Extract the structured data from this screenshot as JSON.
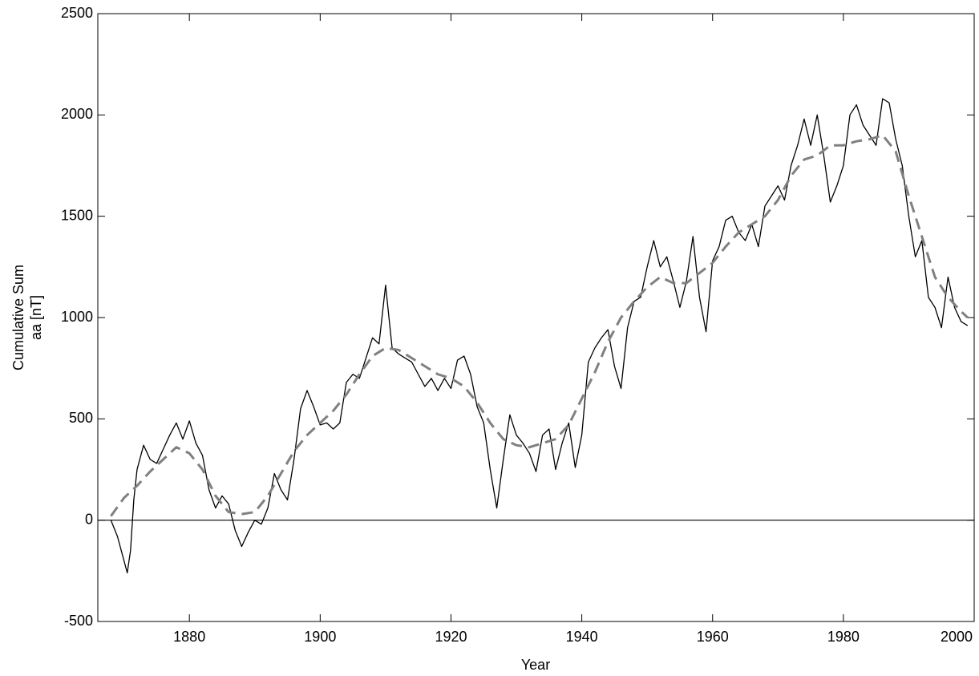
{
  "chart_data": {
    "type": "line",
    "xlabel": "Year",
    "ylabel": [
      "Cumulative Sum",
      "aa [nT]"
    ],
    "xlim": [
      1866,
      2000
    ],
    "xticks": [
      1880,
      1900,
      1920,
      1940,
      1960,
      1980,
      2000
    ],
    "ylim": [
      -500,
      2500
    ],
    "yticks": [
      -500,
      0,
      500,
      1000,
      1500,
      2000,
      2500
    ],
    "hline": 0,
    "series": [
      {
        "color": "#000000",
        "linestyle": "solid",
        "x": [
          1868,
          1869,
          1870,
          1870.5,
          1871,
          1871.5,
          1872,
          1873,
          1874,
          1875,
          1876,
          1877,
          1878,
          1879,
          1880,
          1881,
          1882,
          1883,
          1884,
          1885,
          1886,
          1887,
          1888,
          1889,
          1890,
          1891,
          1892,
          1893,
          1894,
          1895,
          1896,
          1897,
          1898,
          1899,
          1900,
          1901,
          1902,
          1903,
          1904,
          1905,
          1906,
          1907,
          1908,
          1909,
          1910,
          1911,
          1912,
          1913,
          1914,
          1915,
          1916,
          1917,
          1918,
          1919,
          1920,
          1921,
          1922,
          1923,
          1924,
          1925,
          1926,
          1927,
          1928,
          1929,
          1930,
          1931,
          1932,
          1933,
          1934,
          1935,
          1936,
          1937,
          1938,
          1939,
          1940,
          1941,
          1942,
          1943,
          1944,
          1945,
          1946,
          1947,
          1948,
          1949,
          1950,
          1951,
          1952,
          1953,
          1954,
          1955,
          1956,
          1957,
          1958,
          1959,
          1960,
          1961,
          1962,
          1963,
          1964,
          1965,
          1966,
          1967,
          1968,
          1969,
          1970,
          1971,
          1972,
          1973,
          1974,
          1975,
          1976,
          1977,
          1978,
          1979,
          1980,
          1981,
          1982,
          1983,
          1984,
          1985,
          1986,
          1987,
          1988,
          1989,
          1990,
          1991,
          1992,
          1993,
          1994,
          1995,
          1996,
          1997,
          1998,
          1999
        ],
        "values": [
          0,
          -80,
          -200,
          -260,
          -150,
          100,
          250,
          370,
          300,
          280,
          350,
          420,
          480,
          400,
          490,
          380,
          320,
          150,
          60,
          120,
          80,
          -50,
          -130,
          -60,
          0,
          -20,
          60,
          230,
          150,
          100,
          300,
          550,
          640,
          560,
          470,
          480,
          450,
          480,
          680,
          720,
          700,
          800,
          900,
          870,
          1160,
          850,
          820,
          800,
          780,
          720,
          660,
          700,
          640,
          700,
          650,
          790,
          810,
          720,
          560,
          480,
          250,
          60,
          300,
          520,
          420,
          380,
          330,
          240,
          420,
          450,
          250,
          380,
          480,
          260,
          420,
          780,
          850,
          900,
          940,
          760,
          650,
          950,
          1080,
          1100,
          1250,
          1380,
          1250,
          1300,
          1180,
          1050,
          1180,
          1400,
          1100,
          930,
          1280,
          1350,
          1480,
          1500,
          1420,
          1380,
          1460,
          1350,
          1550,
          1600,
          1650,
          1580,
          1750,
          1850,
          1980,
          1850,
          2000,
          1800,
          1570,
          1650,
          1750,
          2000,
          2050,
          1950,
          1900,
          1850,
          2080,
          2060,
          1880,
          1750,
          1500,
          1300,
          1380,
          1100,
          1050,
          950,
          1200,
          1050,
          980,
          960
        ]
      },
      {
        "color": "#808080",
        "linestyle": "dashed",
        "x": [
          1868,
          1870,
          1872,
          1874,
          1876,
          1878,
          1880,
          1882,
          1884,
          1886,
          1888,
          1890,
          1892,
          1894,
          1896,
          1898,
          1900,
          1902,
          1904,
          1906,
          1908,
          1910,
          1912,
          1914,
          1916,
          1918,
          1920,
          1922,
          1924,
          1926,
          1928,
          1930,
          1932,
          1934,
          1936,
          1938,
          1940,
          1942,
          1944,
          1946,
          1948,
          1950,
          1952,
          1954,
          1956,
          1958,
          1960,
          1962,
          1964,
          1966,
          1968,
          1970,
          1972,
          1974,
          1976,
          1978,
          1980,
          1982,
          1984,
          1986,
          1988,
          1990,
          1992,
          1994,
          1996,
          1998,
          1999
        ],
        "values": [
          20,
          110,
          170,
          240,
          300,
          360,
          330,
          250,
          120,
          40,
          30,
          40,
          120,
          230,
          340,
          420,
          480,
          540,
          620,
          720,
          810,
          850,
          840,
          800,
          760,
          720,
          700,
          660,
          580,
          480,
          400,
          370,
          360,
          380,
          400,
          470,
          600,
          730,
          880,
          1000,
          1080,
          1150,
          1200,
          1170,
          1170,
          1220,
          1270,
          1350,
          1420,
          1460,
          1500,
          1580,
          1700,
          1780,
          1800,
          1850,
          1850,
          1870,
          1880,
          1900,
          1820,
          1600,
          1400,
          1200,
          1100,
          1030,
          1000
        ]
      }
    ]
  }
}
